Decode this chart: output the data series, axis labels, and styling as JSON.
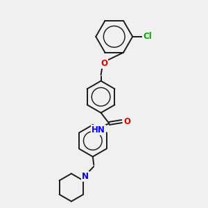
{
  "bg_color": "#f0f0f0",
  "bond_color": "#1a1a1a",
  "bond_width": 1.4,
  "atom_colors": {
    "O": "#dd0000",
    "N": "#0000ee",
    "Cl": "#00aa00",
    "C": "#1a1a1a"
  },
  "font_size": 8.5,
  "figsize": [
    3.0,
    3.0
  ],
  "dpi": 100,
  "xlim": [
    0,
    10
  ],
  "ylim": [
    0,
    10
  ]
}
